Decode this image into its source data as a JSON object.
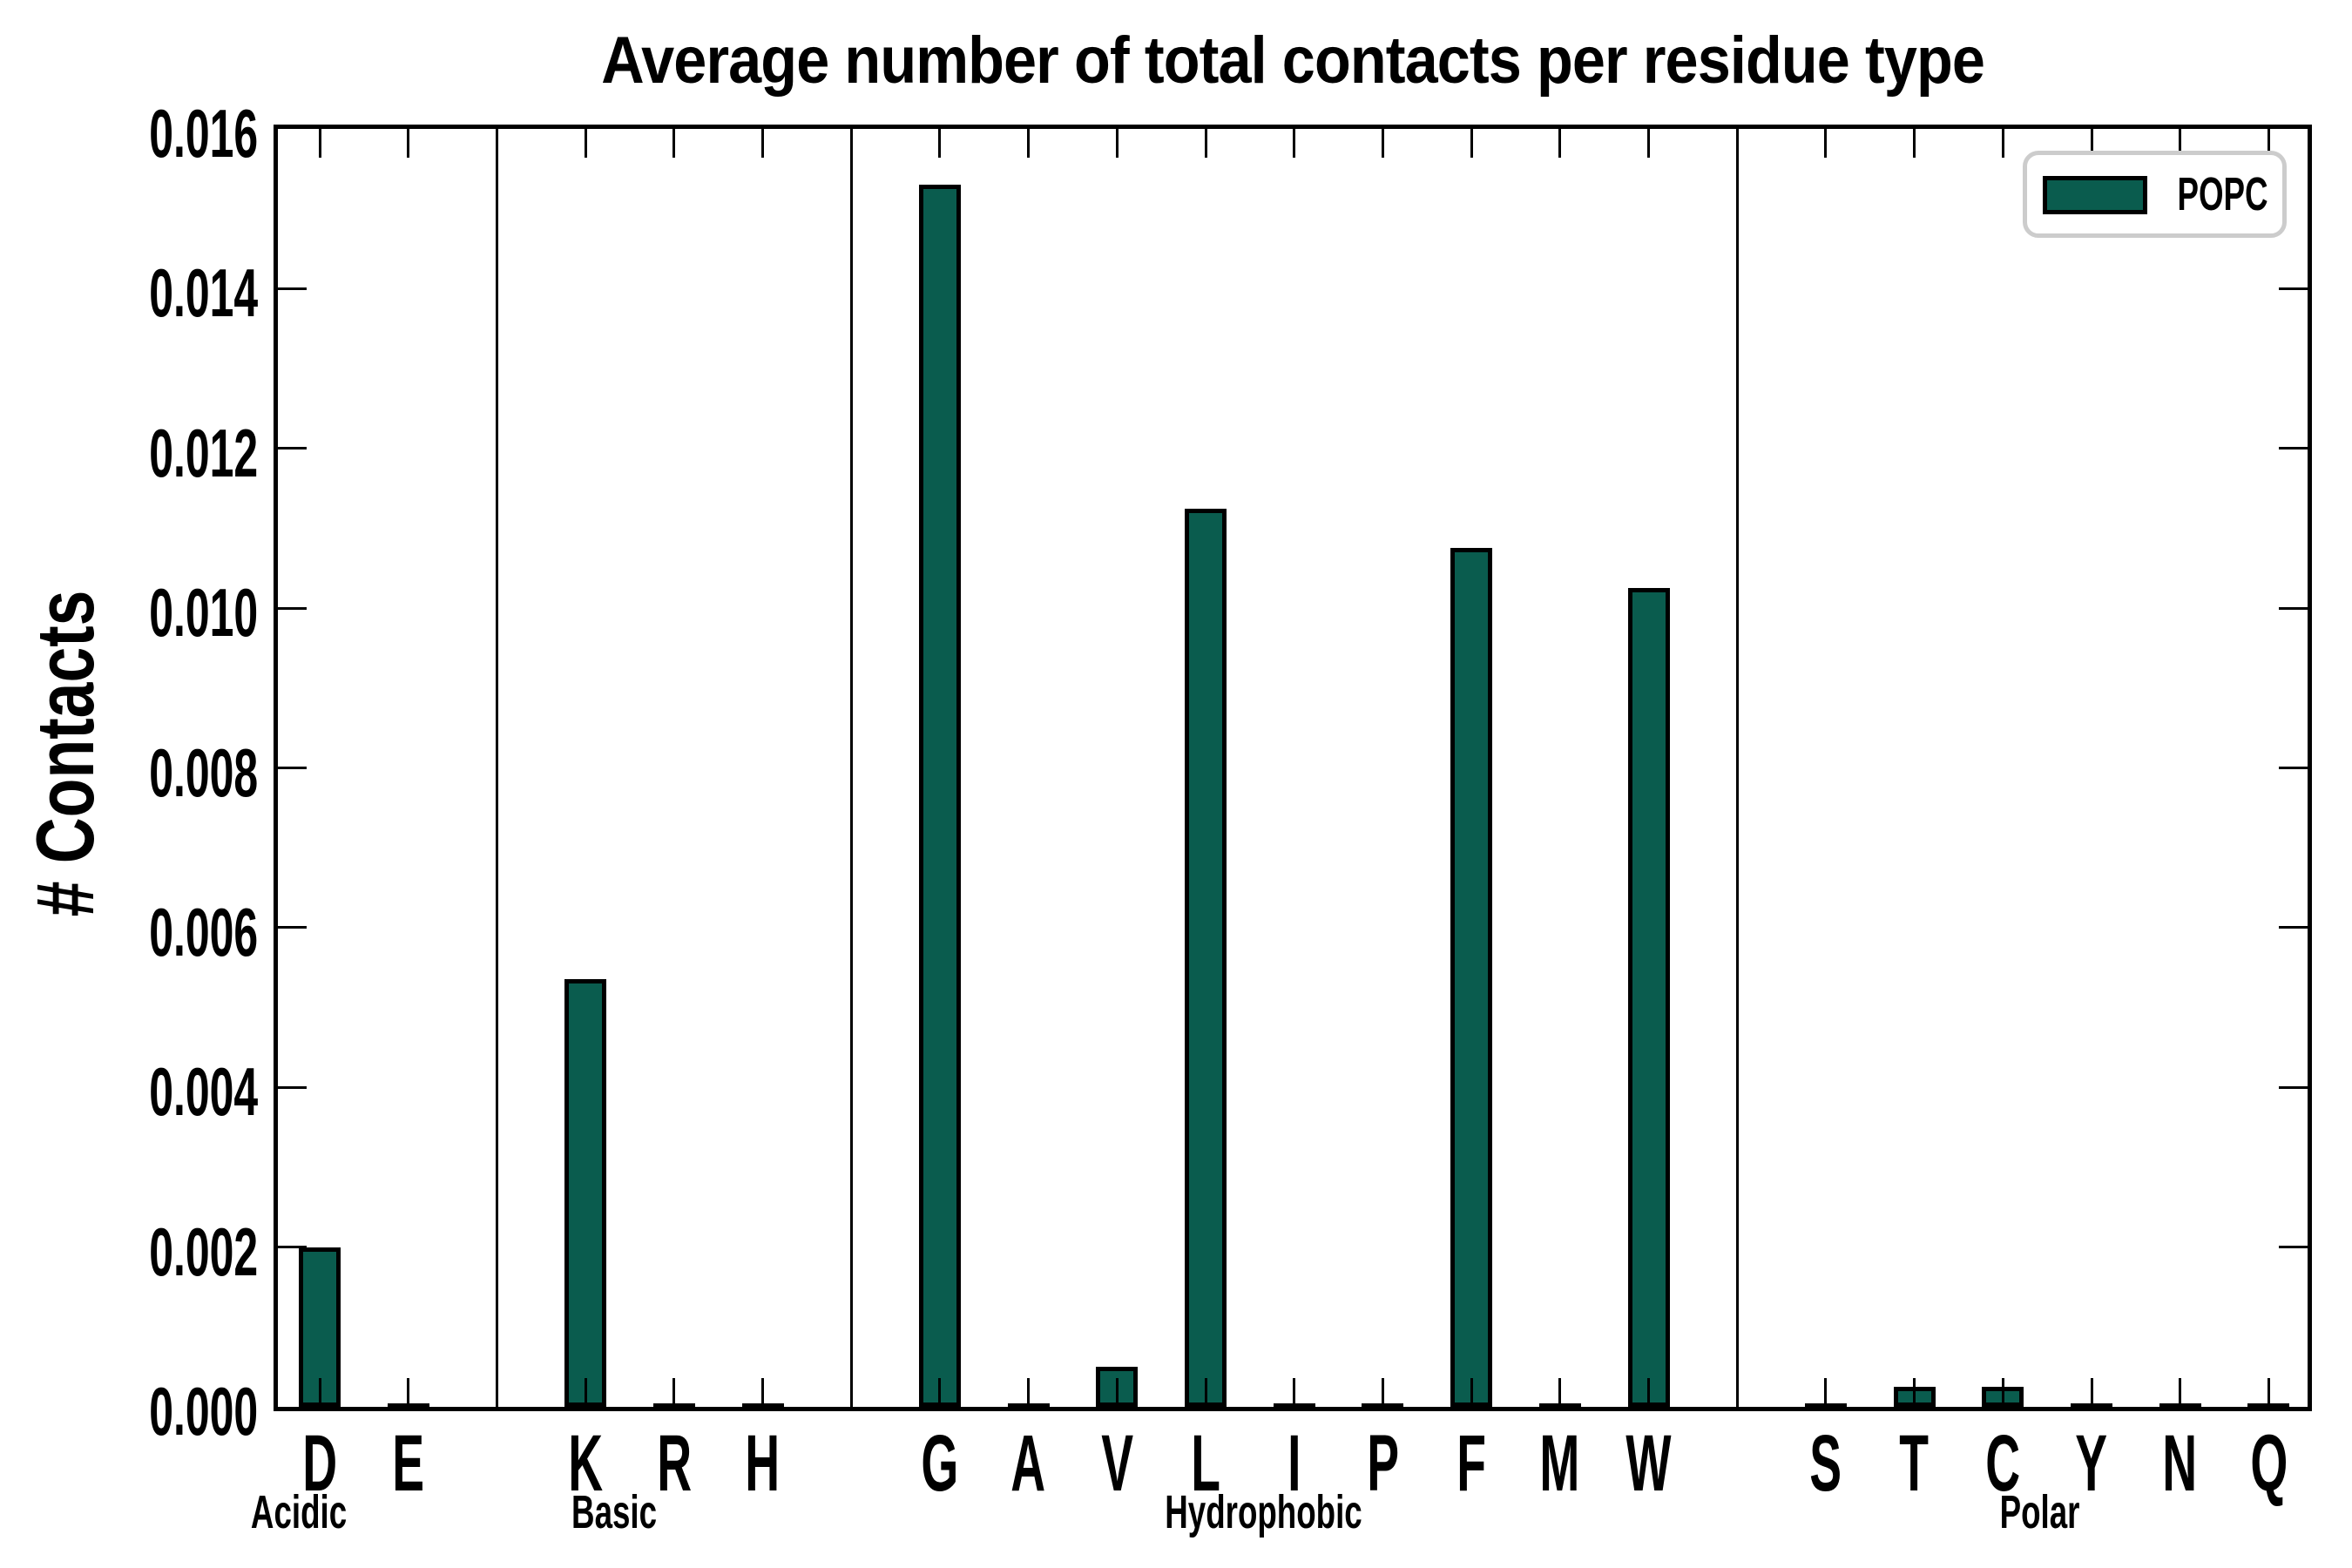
{
  "chart_data": {
    "type": "bar",
    "title": "Average number of total contacts per residue type",
    "ylabel": "# Contacts",
    "xlabel": "",
    "ylim": [
      0,
      0.016
    ],
    "ytick_step": 0.002,
    "ytick_labels": [
      "0.000",
      "0.002",
      "0.004",
      "0.006",
      "0.008",
      "0.010",
      "0.012",
      "0.014",
      "0.016"
    ],
    "grid": false,
    "legend": {
      "label": "POPC",
      "position": "upper right"
    },
    "colors": {
      "bar_fill": "#0a5c4e",
      "bar_edge": "#000000",
      "legend_border": "#cccccc",
      "text": "#000000"
    },
    "groups": [
      {
        "name": "Acidic",
        "residues": [
          {
            "letter": "D",
            "value": 0.002
          },
          {
            "letter": "E",
            "value": 0.0
          }
        ]
      },
      {
        "name": "Basic",
        "residues": [
          {
            "letter": "K",
            "value": 0.00535
          },
          {
            "letter": "R",
            "value": 0.0
          },
          {
            "letter": "H",
            "value": 0.0
          }
        ]
      },
      {
        "name": "Hydrophobic",
        "residues": [
          {
            "letter": "G",
            "value": 0.0153
          },
          {
            "letter": "A",
            "value": 0.0
          },
          {
            "letter": "V",
            "value": 0.0005
          },
          {
            "letter": "L",
            "value": 0.01125
          },
          {
            "letter": "I",
            "value": 0.0
          },
          {
            "letter": "P",
            "value": 0.0
          },
          {
            "letter": "F",
            "value": 0.01075
          },
          {
            "letter": "M",
            "value": 0.0
          },
          {
            "letter": "W",
            "value": 0.01025
          }
        ]
      },
      {
        "name": "Polar",
        "residues": [
          {
            "letter": "S",
            "value": 0.0
          },
          {
            "letter": "T",
            "value": 0.00025
          },
          {
            "letter": "C",
            "value": 0.00025
          },
          {
            "letter": "Y",
            "value": 0.0
          },
          {
            "letter": "N",
            "value": 0.0
          },
          {
            "letter": "Q",
            "value": 0.0
          }
        ]
      }
    ]
  }
}
